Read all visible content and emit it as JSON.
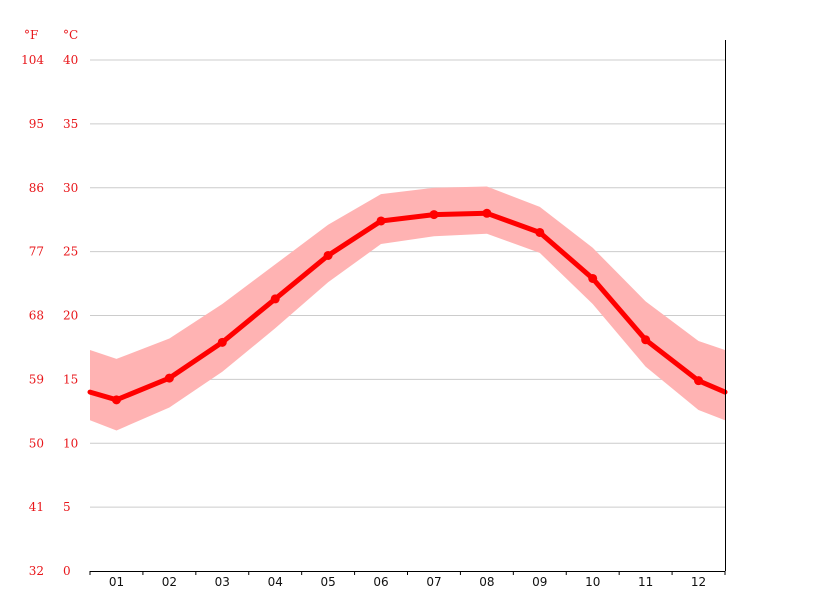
{
  "chart_data": {
    "type": "line",
    "units": {
      "left": "°F",
      "right": "°C"
    },
    "categories": [
      "01",
      "02",
      "03",
      "04",
      "05",
      "06",
      "07",
      "08",
      "09",
      "10",
      "11",
      "12"
    ],
    "series": [
      {
        "values": [
          13.4,
          15.1,
          17.9,
          21.3,
          24.7,
          27.4,
          27.9,
          28.0,
          26.5,
          22.9,
          18.1,
          14.9
        ]
      }
    ],
    "range_band": {
      "upper": [
        16.6,
        18.2,
        20.9,
        24.0,
        27.1,
        29.5,
        30.0,
        30.1,
        28.5,
        25.3,
        21.1,
        18.0
      ],
      "lower": [
        11.0,
        12.8,
        15.6,
        19.0,
        22.6,
        25.6,
        26.2,
        26.4,
        24.9,
        20.9,
        16.0,
        12.6
      ]
    },
    "edge_values": {
      "start": 14.0,
      "end": 14.0
    },
    "edge_band": {
      "start": [
        17.3,
        11.8
      ],
      "end": [
        17.3,
        11.8
      ]
    },
    "y_ticks_c": [
      "0",
      "5",
      "10",
      "15",
      "20",
      "25",
      "30",
      "35",
      "40"
    ],
    "y_ticks_f": [
      "32",
      "41",
      "50",
      "59",
      "68",
      "77",
      "86",
      "95",
      "104"
    ],
    "ylim": [
      0,
      40
    ],
    "grid": true,
    "colors": {
      "line": "#ff0000",
      "band": "#ffb3b3",
      "labels": "#e8161a",
      "grid": "#cccccc",
      "axis": "#000000"
    }
  }
}
